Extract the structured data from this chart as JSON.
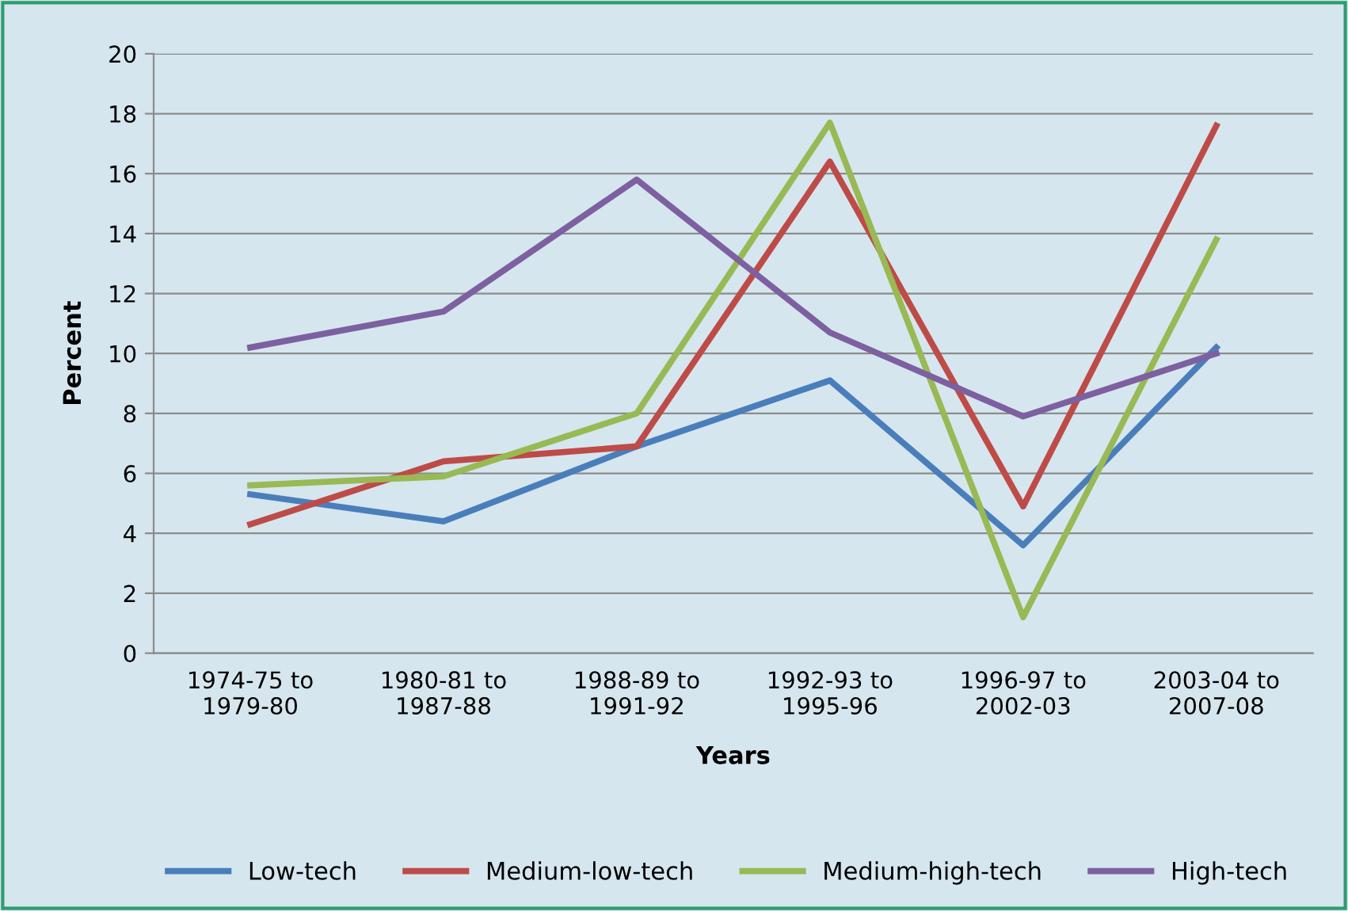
{
  "chart_data": {
    "type": "line",
    "xlabel": "Years",
    "ylabel": "Percent",
    "categories": [
      "1974-75 to\n1979-80",
      "1980-81 to\n1987-88",
      "1988-89 to\n1991-92",
      "1992-93 to\n1995-96",
      "1996-97 to\n2002-03",
      "2003-04 to\n2007-08"
    ],
    "series": [
      {
        "name": "Low-tech",
        "color": "#4a7ebb",
        "values": [
          5.3,
          4.4,
          6.9,
          9.1,
          3.6,
          10.2
        ]
      },
      {
        "name": "Medium-low-tech",
        "color": "#be4b48",
        "values": [
          4.3,
          6.4,
          6.9,
          16.4,
          4.9,
          17.6
        ]
      },
      {
        "name": "Medium-high-tech",
        "color": "#98b954",
        "values": [
          5.6,
          5.9,
          8.0,
          17.7,
          1.2,
          13.8
        ]
      },
      {
        "name": "High-tech",
        "color": "#7d60a0",
        "values": [
          10.2,
          11.4,
          15.8,
          10.7,
          7.9,
          10.0
        ]
      }
    ],
    "ylim": [
      0,
      20
    ],
    "yticks": [
      0,
      2,
      4,
      6,
      8,
      10,
      12,
      14,
      16,
      18,
      20
    ],
    "grid": "y",
    "legend": "bottom",
    "marker": "none",
    "line_style": "solid"
  }
}
